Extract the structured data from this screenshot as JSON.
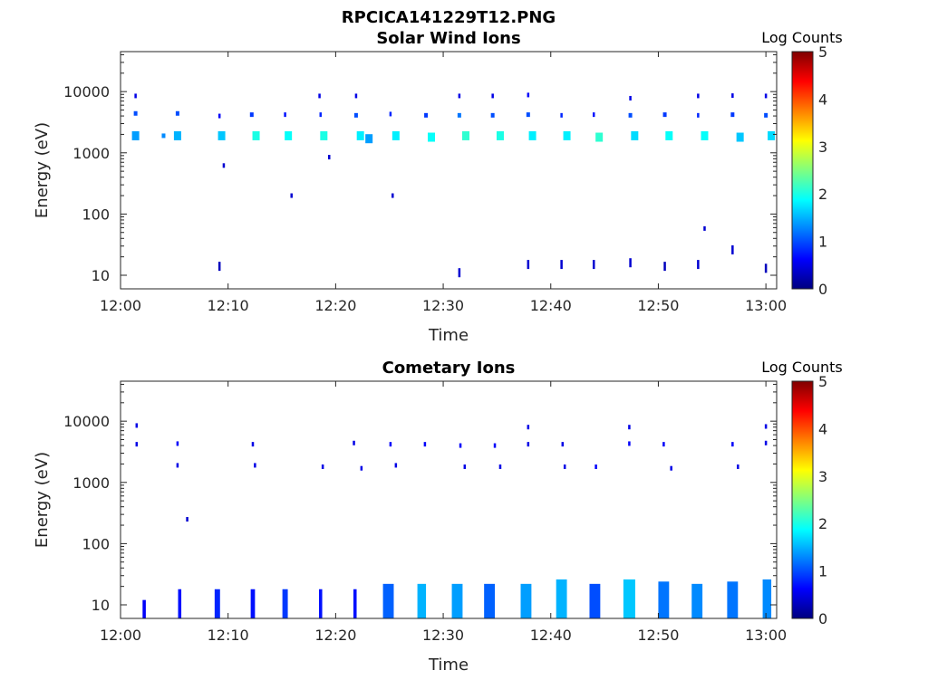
{
  "figure": {
    "title": "RPCICA141229T12.PNG"
  },
  "chart_data": [
    {
      "type": "heatmap",
      "title": "Solar Wind Ions",
      "xlabel": "Time",
      "ylabel": "Energy (eV)",
      "x_ticks": [
        "12:00",
        "12:10",
        "12:20",
        "12:30",
        "12:40",
        "12:50",
        "13:00"
      ],
      "x_range_minutes": [
        0,
        61
      ],
      "y_scale": "log",
      "y_ticks": [
        10,
        100,
        1000,
        10000
      ],
      "ylim": [
        6,
        45000
      ],
      "colorbar": {
        "label": "Log Counts",
        "ticks": [
          0,
          1,
          2,
          3,
          4,
          5
        ],
        "range": [
          0,
          5
        ],
        "colormap": "jet"
      },
      "grid": false,
      "cells": [
        {
          "t": 1.4,
          "e": 8500,
          "c": 0.5
        },
        {
          "t": 1.4,
          "e": 4400,
          "c": 1.0
        },
        {
          "t": 1.4,
          "e": 1900,
          "c": 1.4
        },
        {
          "t": 4.0,
          "e": 1900,
          "c": 1.3
        },
        {
          "t": 5.3,
          "e": 4400,
          "c": 1.0
        },
        {
          "t": 5.3,
          "e": 1900,
          "c": 1.5
        },
        {
          "t": 9.2,
          "e": 14,
          "c": 0.3
        },
        {
          "t": 9.2,
          "e": 4000,
          "c": 0.6
        },
        {
          "t": 9.4,
          "e": 1900,
          "c": 1.6
        },
        {
          "t": 9.6,
          "e": 620,
          "c": 0.4
        },
        {
          "t": 12.2,
          "e": 4200,
          "c": 0.9
        },
        {
          "t": 12.6,
          "e": 1900,
          "c": 2.0
        },
        {
          "t": 15.3,
          "e": 4200,
          "c": 0.7
        },
        {
          "t": 15.6,
          "e": 1900,
          "c": 1.9
        },
        {
          "t": 15.9,
          "e": 200,
          "c": 0.4
        },
        {
          "t": 18.5,
          "e": 8500,
          "c": 0.5
        },
        {
          "t": 18.6,
          "e": 4200,
          "c": 0.8
        },
        {
          "t": 18.9,
          "e": 1900,
          "c": 2.0
        },
        {
          "t": 19.4,
          "e": 850,
          "c": 0.4
        },
        {
          "t": 21.9,
          "e": 8500,
          "c": 0.5
        },
        {
          "t": 21.9,
          "e": 4100,
          "c": 1.0
        },
        {
          "t": 22.3,
          "e": 1900,
          "c": 1.8
        },
        {
          "t": 23.1,
          "e": 1700,
          "c": 1.4
        },
        {
          "t": 25.1,
          "e": 4300,
          "c": 0.8
        },
        {
          "t": 25.3,
          "e": 200,
          "c": 0.4
        },
        {
          "t": 25.6,
          "e": 1900,
          "c": 1.8
        },
        {
          "t": 28.4,
          "e": 4100,
          "c": 0.9
        },
        {
          "t": 28.9,
          "e": 1800,
          "c": 1.9
        },
        {
          "t": 31.5,
          "e": 8500,
          "c": 0.5
        },
        {
          "t": 31.5,
          "e": 4100,
          "c": 1.2
        },
        {
          "t": 31.5,
          "e": 11,
          "c": 0.4
        },
        {
          "t": 32.1,
          "e": 1900,
          "c": 2.1
        },
        {
          "t": 34.6,
          "e": 8500,
          "c": 0.5
        },
        {
          "t": 34.6,
          "e": 4100,
          "c": 1.0
        },
        {
          "t": 35.3,
          "e": 1900,
          "c": 2.0
        },
        {
          "t": 37.9,
          "e": 8800,
          "c": 0.6
        },
        {
          "t": 37.9,
          "e": 4200,
          "c": 1.0
        },
        {
          "t": 37.9,
          "e": 15,
          "c": 0.4
        },
        {
          "t": 38.3,
          "e": 1900,
          "c": 1.8
        },
        {
          "t": 41.0,
          "e": 4100,
          "c": 0.8
        },
        {
          "t": 41.0,
          "e": 15,
          "c": 0.4
        },
        {
          "t": 41.5,
          "e": 1900,
          "c": 1.8
        },
        {
          "t": 44.0,
          "e": 4200,
          "c": 0.7
        },
        {
          "t": 44.0,
          "e": 15,
          "c": 0.4
        },
        {
          "t": 44.5,
          "e": 1800,
          "c": 2.1
        },
        {
          "t": 47.4,
          "e": 7800,
          "c": 0.5
        },
        {
          "t": 47.4,
          "e": 4100,
          "c": 1.0
        },
        {
          "t": 47.4,
          "e": 16,
          "c": 0.4
        },
        {
          "t": 47.8,
          "e": 1900,
          "c": 1.7
        },
        {
          "t": 50.6,
          "e": 4200,
          "c": 0.9
        },
        {
          "t": 50.6,
          "e": 14,
          "c": 0.3
        },
        {
          "t": 51.0,
          "e": 1900,
          "c": 1.9
        },
        {
          "t": 53.7,
          "e": 8500,
          "c": 0.5
        },
        {
          "t": 53.7,
          "e": 4100,
          "c": 0.8
        },
        {
          "t": 53.7,
          "e": 15,
          "c": 0.4
        },
        {
          "t": 54.3,
          "e": 58,
          "c": 0.4
        },
        {
          "t": 54.3,
          "e": 1900,
          "c": 1.9
        },
        {
          "t": 56.9,
          "e": 8600,
          "c": 0.5
        },
        {
          "t": 56.9,
          "e": 4200,
          "c": 0.9
        },
        {
          "t": 56.9,
          "e": 26,
          "c": 0.4
        },
        {
          "t": 57.6,
          "e": 1800,
          "c": 1.6
        },
        {
          "t": 60.0,
          "e": 8500,
          "c": 0.5
        },
        {
          "t": 60.0,
          "e": 4100,
          "c": 1.0
        },
        {
          "t": 60.0,
          "e": 13,
          "c": 0.3
        },
        {
          "t": 60.5,
          "e": 1900,
          "c": 1.7
        }
      ]
    },
    {
      "type": "heatmap",
      "title": "Cometary Ions",
      "xlabel": "Time",
      "ylabel": "Energy (eV)",
      "x_ticks": [
        "12:00",
        "12:10",
        "12:20",
        "12:30",
        "12:40",
        "12:50",
        "13:00"
      ],
      "x_range_minutes": [
        0,
        61
      ],
      "y_scale": "log",
      "y_ticks": [
        10,
        100,
        1000,
        10000
      ],
      "ylim": [
        6,
        45000
      ],
      "colorbar": {
        "label": "Log Counts",
        "ticks": [
          0,
          1,
          2,
          3,
          4,
          5
        ],
        "range": [
          0,
          5
        ],
        "colormap": "jet"
      },
      "grid": false,
      "cells": [
        {
          "t": 1.5,
          "e": 8500,
          "c": 0.5
        },
        {
          "t": 1.5,
          "e": 4200,
          "c": 0.5
        },
        {
          "t": 5.3,
          "e": 4300,
          "c": 0.6
        },
        {
          "t": 5.3,
          "e": 1900,
          "c": 0.5
        },
        {
          "t": 6.2,
          "e": 250,
          "c": 0.4
        },
        {
          "t": 12.3,
          "e": 4200,
          "c": 0.5
        },
        {
          "t": 12.5,
          "e": 1900,
          "c": 0.5
        },
        {
          "t": 18.8,
          "e": 1800,
          "c": 0.5
        },
        {
          "t": 21.7,
          "e": 4400,
          "c": 0.5
        },
        {
          "t": 22.4,
          "e": 1700,
          "c": 0.5
        },
        {
          "t": 25.1,
          "e": 4200,
          "c": 0.6
        },
        {
          "t": 25.6,
          "e": 1900,
          "c": 0.5
        },
        {
          "t": 28.3,
          "e": 4200,
          "c": 0.6
        },
        {
          "t": 31.6,
          "e": 4000,
          "c": 0.6
        },
        {
          "t": 32.0,
          "e": 1800,
          "c": 0.5
        },
        {
          "t": 34.8,
          "e": 4000,
          "c": 0.6
        },
        {
          "t": 35.3,
          "e": 1800,
          "c": 0.5
        },
        {
          "t": 37.9,
          "e": 8000,
          "c": 0.5
        },
        {
          "t": 37.9,
          "e": 4200,
          "c": 0.5
        },
        {
          "t": 41.1,
          "e": 4200,
          "c": 0.5
        },
        {
          "t": 41.3,
          "e": 1800,
          "c": 0.5
        },
        {
          "t": 44.2,
          "e": 1800,
          "c": 0.6
        },
        {
          "t": 47.3,
          "e": 8000,
          "c": 0.5
        },
        {
          "t": 47.3,
          "e": 4300,
          "c": 0.6
        },
        {
          "t": 50.5,
          "e": 4200,
          "c": 0.6
        },
        {
          "t": 51.2,
          "e": 1700,
          "c": 0.5
        },
        {
          "t": 56.9,
          "e": 4200,
          "c": 0.6
        },
        {
          "t": 57.4,
          "e": 1800,
          "c": 0.5
        },
        {
          "t": 60.0,
          "e": 8200,
          "c": 0.5
        },
        {
          "t": 60.0,
          "e": 4400,
          "c": 0.5
        }
      ],
      "bursts": [
        {
          "t": 2.2,
          "w": 0.3,
          "c": 0.6,
          "emax": 12
        },
        {
          "t": 5.5,
          "w": 0.3,
          "c": 0.7,
          "emax": 18
        },
        {
          "t": 9.0,
          "w": 0.5,
          "c": 0.8,
          "emax": 18
        },
        {
          "t": 12.3,
          "w": 0.4,
          "c": 0.7,
          "emax": 18
        },
        {
          "t": 15.3,
          "w": 0.5,
          "c": 0.9,
          "emax": 18
        },
        {
          "t": 18.6,
          "w": 0.3,
          "c": 0.7,
          "emax": 18
        },
        {
          "t": 21.8,
          "w": 0.3,
          "c": 0.7,
          "emax": 18
        },
        {
          "t": 24.9,
          "w": 1.0,
          "c": 1.1,
          "emax": 22
        },
        {
          "t": 28.0,
          "w": 0.8,
          "c": 1.5,
          "emax": 22
        },
        {
          "t": 31.3,
          "w": 1.0,
          "c": 1.4,
          "emax": 22
        },
        {
          "t": 34.3,
          "w": 1.0,
          "c": 1.1,
          "emax": 22
        },
        {
          "t": 37.7,
          "w": 1.0,
          "c": 1.4,
          "emax": 22
        },
        {
          "t": 41.0,
          "w": 1.0,
          "c": 1.5,
          "emax": 26
        },
        {
          "t": 44.1,
          "w": 1.0,
          "c": 1.0,
          "emax": 22
        },
        {
          "t": 47.3,
          "w": 1.1,
          "c": 1.6,
          "emax": 26
        },
        {
          "t": 50.5,
          "w": 1.0,
          "c": 1.2,
          "emax": 24
        },
        {
          "t": 53.6,
          "w": 1.0,
          "c": 1.3,
          "emax": 22
        },
        {
          "t": 56.9,
          "w": 1.0,
          "c": 1.2,
          "emax": 24
        },
        {
          "t": 60.1,
          "w": 0.8,
          "c": 1.3,
          "emax": 26
        }
      ]
    }
  ]
}
